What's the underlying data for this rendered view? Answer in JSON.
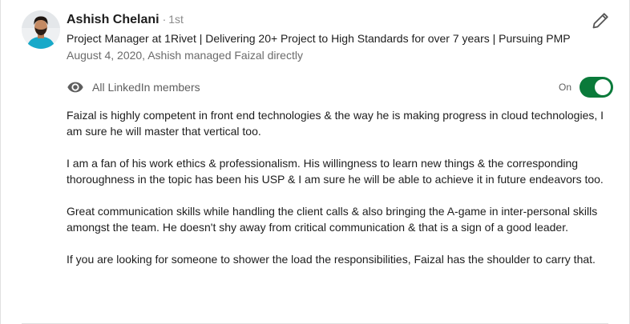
{
  "recommender": {
    "name": "Ashish Chelani",
    "separator": "·",
    "degree": "1st",
    "headline": "Project Manager at 1Rivet | Delivering 20+ Project to High Standards for over 7 years | Pursuing PMP",
    "meta": "August 4, 2020, Ashish managed Faizal directly"
  },
  "visibility": {
    "label": "All LinkedIn members",
    "toggle_label": "On",
    "toggle_on": true,
    "accent_color": "#0a7a3a"
  },
  "icons": {
    "visibility": "eye-icon",
    "edit": "pencil-icon"
  },
  "recommendation": {
    "paragraphs": [
      "Faizal is highly competent in front end technologies & the way he is making progress in cloud technologies, I am sure he will master that vertical too.",
      "I am a fan of his work ethics & professionalism. His willingness to learn new things & the corresponding thoroughness in the topic has been his USP & I am sure he will be able to achieve it in future endeavors too.",
      "Great communication skills while handling the client calls & also bringing the A-game in inter-personal skills amongst the team. He doesn't shy away from critical communication & that is a sign of a good leader.",
      "If you are looking for someone to shower the load the responsibilities, Faizal has the shoulder to carry that."
    ]
  }
}
